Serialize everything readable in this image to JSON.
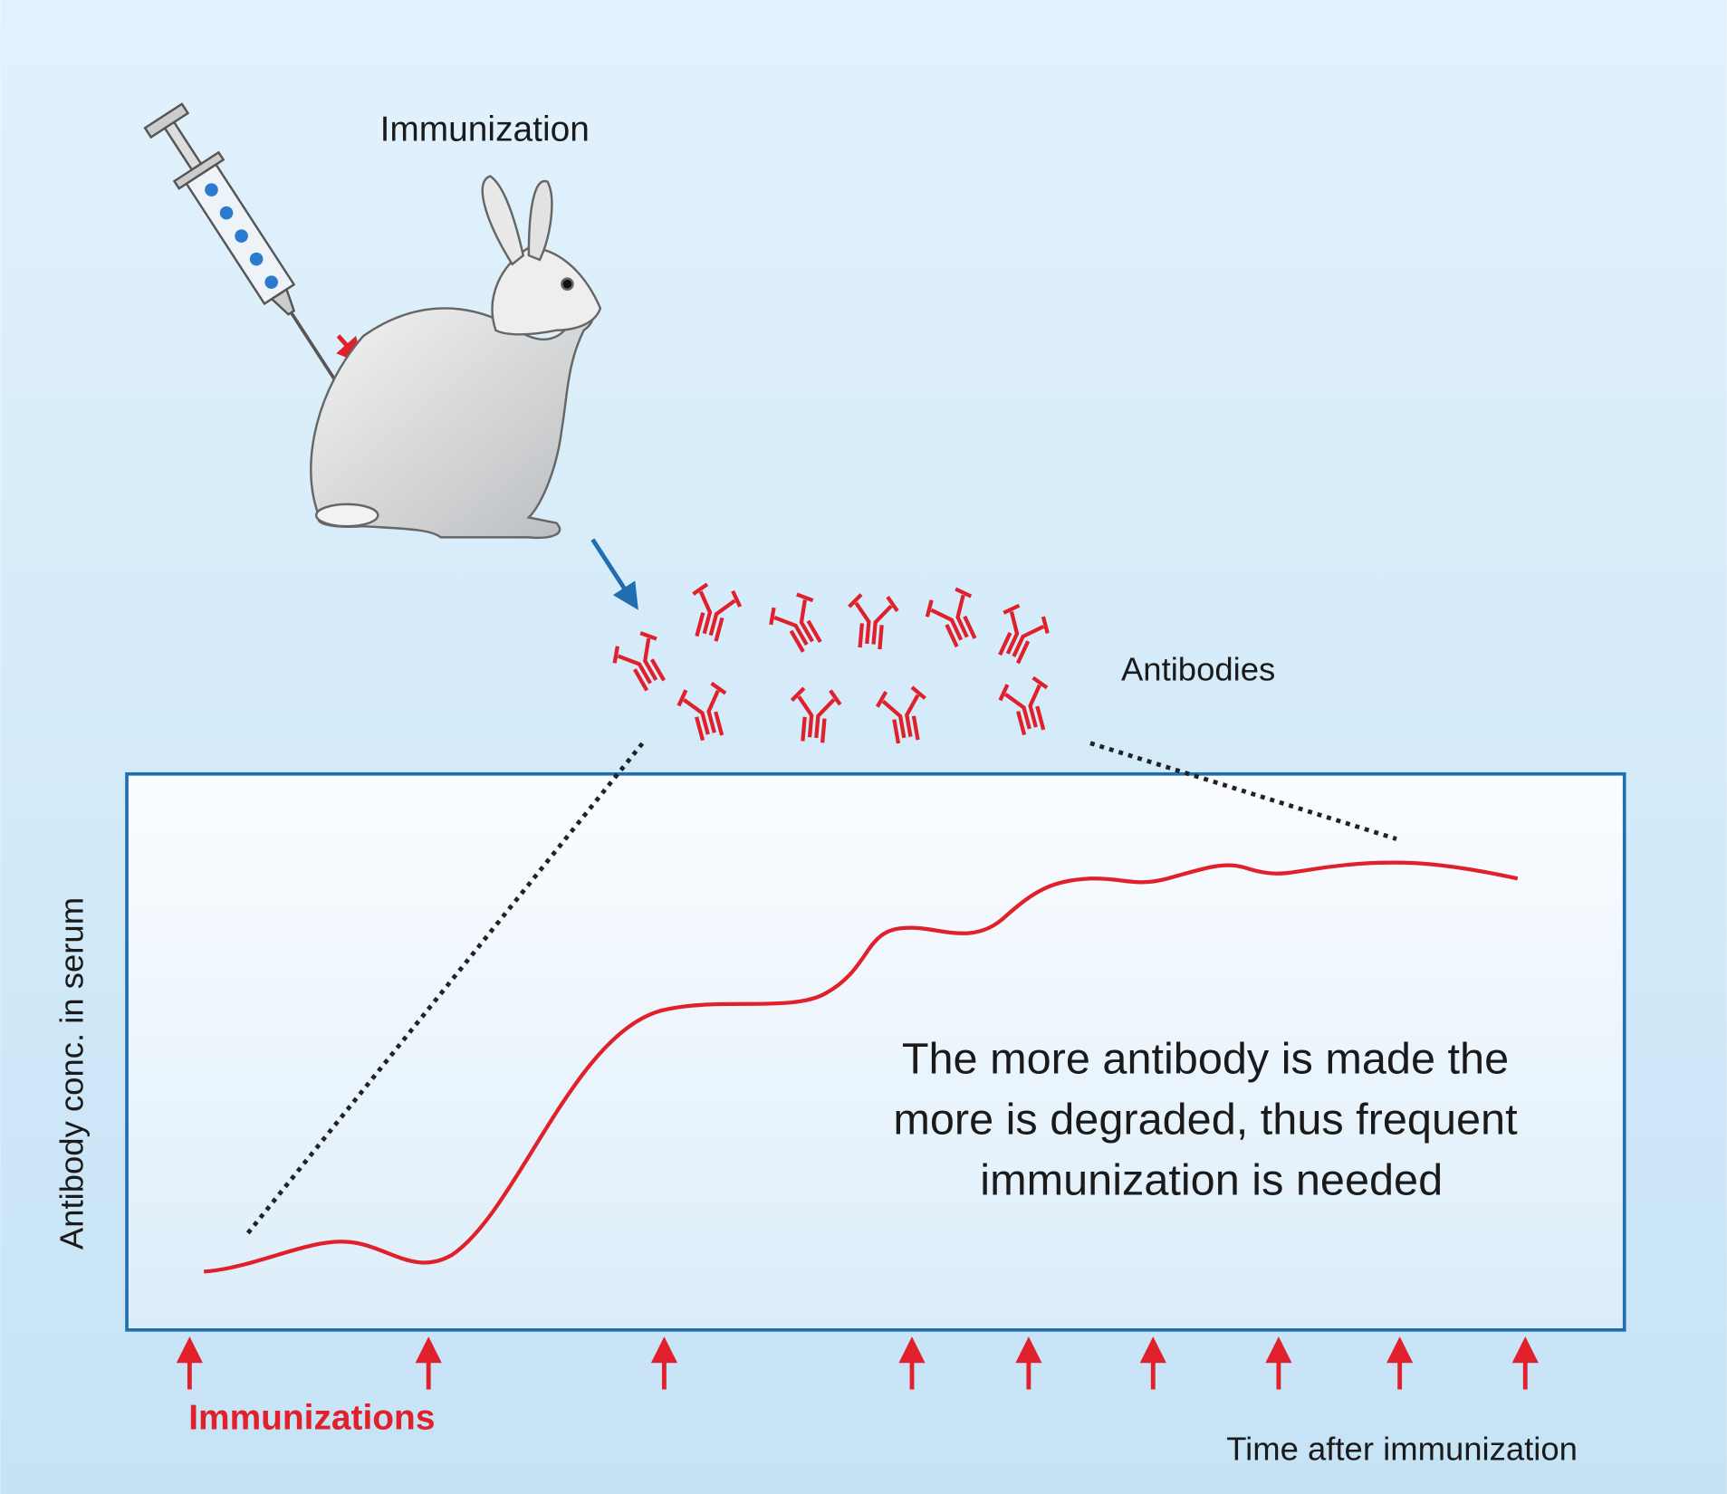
{
  "labels": {
    "immunization": "Immunization",
    "antibodies": "Antibodies",
    "y_axis": "Antibody conc. in serum",
    "note": [
      "The more antibody is made the",
      "more is degraded, thus frequent",
      "immunization is needed"
    ],
    "immunizations": "Immunizations",
    "x_axis": "Time after immunization"
  }
}
